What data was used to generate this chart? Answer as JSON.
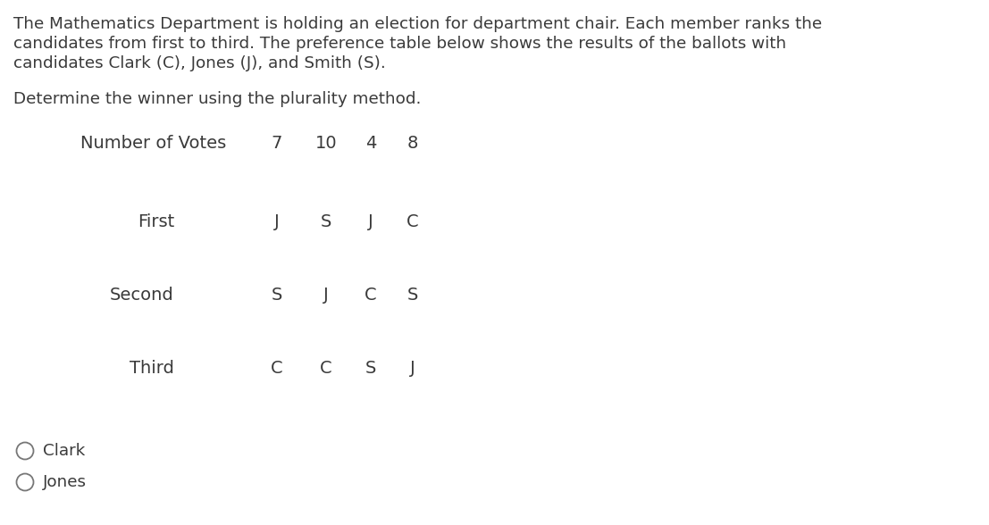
{
  "line1": "The Mathematics Department is holding an election for department chair. Each member ranks the",
  "line2": "candidates from first to third. The preference table below shows the results of the ballots with",
  "line3": "candidates Clark (C), Jones (J), and Smith (S).",
  "subtext": "Determine the winner using the plurality method.",
  "table_label": "Number of Votes",
  "vote_counts": [
    "7",
    "10",
    "4",
    "8"
  ],
  "row_labels": [
    "First",
    "Second",
    "Third"
  ],
  "table_data": [
    [
      "J",
      "S",
      "J",
      "C"
    ],
    [
      "S",
      "J",
      "C",
      "S"
    ],
    [
      "C",
      "C",
      "S",
      "J"
    ]
  ],
  "radio_options": [
    "Clark",
    "Jones"
  ],
  "bg_color": "#ffffff",
  "text_color": "#3a3a3a",
  "font_size_para": 13.2,
  "font_size_table": 14.0,
  "font_size_radio": 13.2
}
